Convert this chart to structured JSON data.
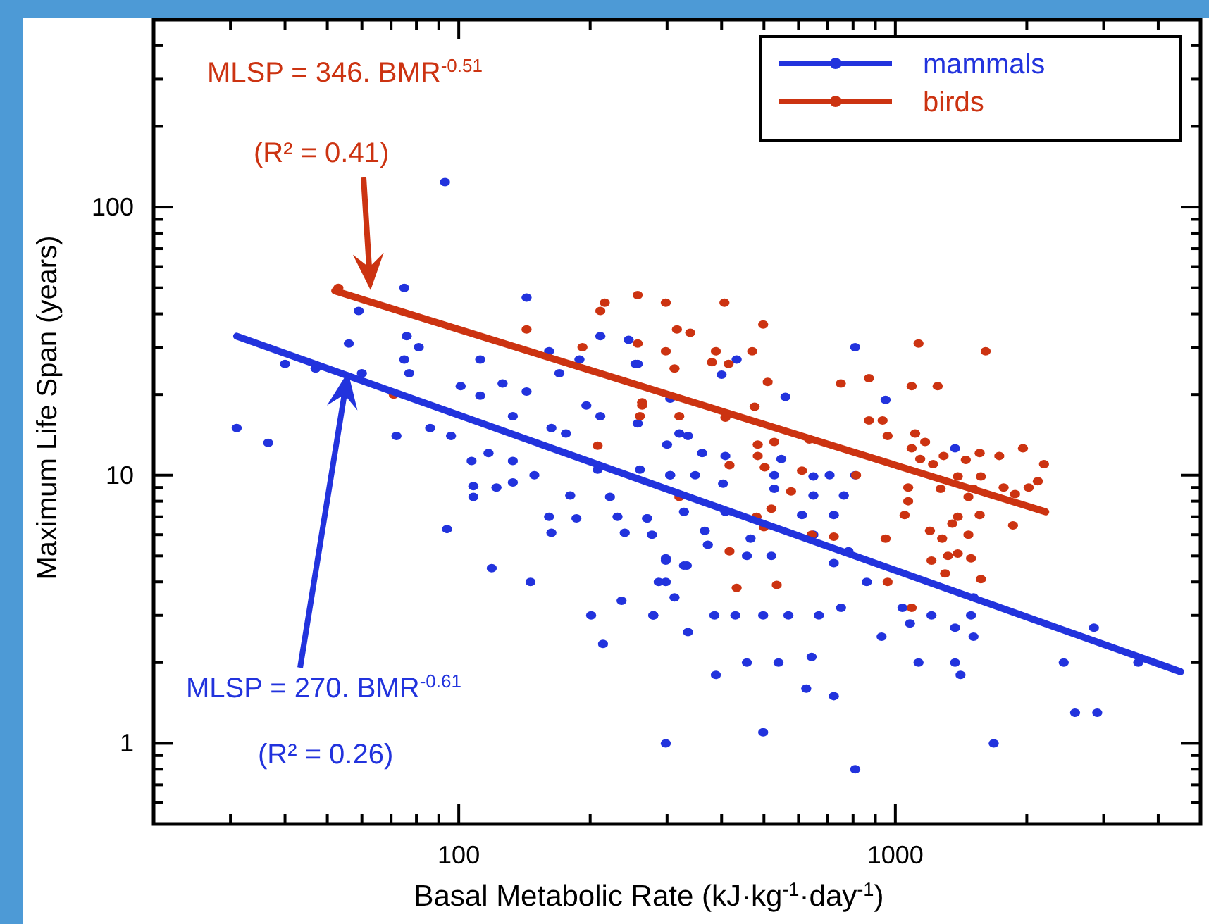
{
  "chart_data": {
    "type": "scatter",
    "xlabel": "Basal Metabolic Rate (kJ·kg$^{-1}$·day$^{-1}$)",
    "ylabel": "Maximum Life Span (years)",
    "log": "xy",
    "grid": false,
    "legend": "top right",
    "marker": "circle",
    "xlim": [
      20,
      5000
    ],
    "ylim": [
      0.5,
      500
    ],
    "xticks": [
      {
        "value": 20,
        "label": null
      },
      {
        "value": 30,
        "label": null
      },
      {
        "value": 40,
        "label": null
      },
      {
        "value": 50,
        "label": null
      },
      {
        "value": 60,
        "label": null
      },
      {
        "value": 70,
        "label": null
      },
      {
        "value": 80,
        "label": null
      },
      {
        "value": 90,
        "label": null
      },
      100,
      {
        "value": 200,
        "label": null
      },
      {
        "value": 300,
        "label": null
      },
      {
        "value": 400,
        "label": null
      },
      {
        "value": 500,
        "label": null
      },
      {
        "value": 600,
        "label": null
      },
      {
        "value": 700,
        "label": null
      },
      {
        "value": 800,
        "label": null
      },
      {
        "value": 900,
        "label": null
      },
      1000,
      {
        "value": 2000,
        "label": null
      },
      {
        "value": 3000,
        "label": null
      },
      {
        "value": 4000,
        "label": null
      },
      {
        "value": 5000,
        "label": null
      }
    ],
    "yticks": [
      {
        "value": 0.5,
        "label": null
      },
      {
        "value": 0.6,
        "label": null
      },
      {
        "value": 0.7,
        "label": null
      },
      {
        "value": 0.8,
        "label": null
      },
      {
        "value": 0.9,
        "label": null
      },
      1,
      {
        "value": 2,
        "label": null
      },
      {
        "value": 3,
        "label": null
      },
      {
        "value": 4,
        "label": null
      },
      {
        "value": 5,
        "label": null
      },
      {
        "value": 6,
        "label": null
      },
      {
        "value": 7,
        "label": null
      },
      {
        "value": 8,
        "label": null
      },
      {
        "value": 9,
        "label": null
      },
      10,
      {
        "value": 20,
        "label": null
      },
      {
        "value": 30,
        "label": null
      },
      {
        "value": 40,
        "label": null
      },
      {
        "value": 50,
        "label": null
      },
      {
        "value": 60,
        "label": null
      },
      {
        "value": 70,
        "label": null
      },
      {
        "value": 80,
        "label": null
      },
      {
        "value": 90,
        "label": null
      },
      100,
      {
        "value": 200,
        "label": null
      },
      {
        "value": 300,
        "label": null
      },
      {
        "value": 400,
        "label": null
      },
      {
        "value": 500,
        "label": null
      }
    ],
    "annotations": [
      "MLSP = 346. BMR$^{-0.51}$",
      "(R² = 0.41)",
      "MLSP = 270. BMR$^{-0.61}$",
      "(R² = 0.26)"
    ],
    "series": [
      {
        "name": "mammals",
        "color": "#2233dd",
        "x": [
          93,
          31,
          36.6,
          40,
          47,
          56,
          59,
          60,
          75,
          72,
          76,
          75,
          81,
          77,
          86,
          94,
          96,
          101,
          107,
          108,
          108,
          112,
          112,
          117,
          119,
          122,
          126,
          133,
          133,
          133,
          143,
          143,
          146,
          149,
          161,
          161,
          163,
          163,
          170,
          176,
          180,
          186,
          189,
          196,
          201,
          211,
          211,
          208,
          214,
          222,
          231,
          236,
          240,
          245,
          254,
          257,
          260,
          270,
          279,
          298,
          298,
          298,
          305,
          328,
          333,
          335,
          320,
          809,
          950,
          1370,
          560,
          433,
          400,
          305,
          257,
          335,
          361,
          408,
          300,
          305,
          348,
          403,
          528,
          649,
          707,
          809,
          548,
          649,
          762,
          528,
          270,
          277,
          366,
          372,
          408,
          466,
          611,
          723,
          649,
          457,
          520,
          781,
          723,
          298,
          328,
          287,
          312,
          385,
          430,
          498,
          569,
          668,
          751,
          860,
          1038,
          1210,
          1490,
          1510,
          1080,
          1370,
          1510,
          930,
          279,
          457,
          540,
          643,
          1130,
          1370,
          1410,
          388,
          625,
          723,
          498,
          809,
          1680,
          2430,
          2850,
          2580,
          2900,
          3600
        ],
        "values": [
          124,
          15,
          13.2,
          26,
          25,
          31,
          41,
          24,
          50,
          14,
          33,
          27,
          30,
          24,
          15,
          6.3,
          14,
          21.5,
          11.3,
          9.1,
          8.3,
          27,
          19.8,
          12.1,
          4.5,
          9,
          22,
          16.6,
          11.3,
          9.4,
          46,
          20.5,
          4,
          10,
          7,
          29,
          6.1,
          15,
          24,
          14.3,
          8.4,
          6.9,
          27,
          18.2,
          3,
          33,
          16.6,
          10.5,
          2.35,
          8.3,
          7,
          3.4,
          6.1,
          32,
          26,
          15.6,
          10.5,
          6.9,
          3,
          4.9,
          4,
          1,
          10,
          7.3,
          4.6,
          2.6,
          14.3,
          30,
          19.1,
          12.6,
          19.6,
          27,
          23.7,
          19.3,
          26,
          14,
          12.1,
          11.8,
          13,
          10,
          10,
          9.3,
          10,
          9.9,
          10,
          10,
          11.5,
          8.4,
          8.4,
          8.9,
          6.9,
          6,
          6.2,
          5.5,
          7.3,
          5.8,
          7.1,
          7.1,
          6,
          5,
          5,
          5.2,
          4.7,
          4.8,
          4.6,
          4,
          3.5,
          3,
          3,
          3,
          3,
          3,
          3.2,
          4,
          3.2,
          3,
          3,
          3.5,
          2.8,
          2.7,
          2.5,
          2.5,
          3,
          2,
          2,
          2.1,
          2,
          2,
          1.8,
          1.8,
          1.6,
          1.5,
          1.1,
          0.8,
          1,
          2,
          2.7,
          1.3,
          1.3,
          2
        ]
      },
      {
        "name": "birds",
        "color": "#cc3311",
        "x": [
          53,
          143,
          71,
          211,
          216,
          257,
          298,
          192,
          257,
          298,
          312,
          316,
          263,
          260,
          208,
          320,
          320,
          406,
          339,
          498,
          388,
          470,
          380,
          415,
          510,
          750,
          870,
          1130,
          1610,
          1090,
          1250,
          263,
          408,
          476,
          870,
          935,
          960,
          1110,
          1170,
          1090,
          484,
          528,
          635,
          484,
          502,
          417,
          611,
          813,
          1140,
          1220,
          1290,
          1450,
          1560,
          1730,
          1960,
          2190,
          1390,
          1570,
          2120,
          2020,
          1770,
          1880,
          1510,
          1470,
          1560,
          1270,
          1070,
          1070,
          1050,
          1390,
          1350,
          1860,
          1470,
          1200,
          1280,
          950,
          723,
          643,
          577,
          520,
          481,
          500,
          417,
          1320,
          1390,
          1490,
          1210,
          1300,
          1570,
          433,
          535,
          960,
          1090
        ],
        "values": [
          50,
          35,
          20,
          41,
          44,
          47,
          44,
          30,
          31,
          29,
          25,
          35,
          18.7,
          16.6,
          12.9,
          8.3,
          16.6,
          44,
          34,
          36.5,
          29,
          29,
          26.4,
          26,
          22.3,
          22,
          23,
          31,
          29,
          21.5,
          21.5,
          18.2,
          16.4,
          18,
          16,
          16,
          14,
          14.3,
          13.3,
          12.6,
          13,
          13.3,
          13.6,
          11.8,
          10.7,
          10.9,
          10.4,
          10,
          11.5,
          11,
          11.8,
          11.4,
          12.1,
          11.8,
          12.6,
          11,
          9.9,
          9.9,
          9.5,
          9,
          9,
          8.5,
          8.9,
          8.3,
          7.1,
          8.9,
          9,
          8,
          7.1,
          7,
          6.6,
          6.5,
          6,
          6.2,
          5.8,
          5.8,
          5.9,
          6,
          8.7,
          7.5,
          7,
          6.4,
          5.2,
          5,
          5.1,
          4.9,
          4.8,
          4.3,
          4.1,
          3.8,
          3.9,
          4,
          3.2
        ]
      },
      {
        "type": "line",
        "color": "#2233dd",
        "marker": "none",
        "x": [
          31,
          4500
        ],
        "values": [
          33,
          1.85
        ]
      },
      {
        "type": "line",
        "color": "#cc3311",
        "marker": "none",
        "x": [
          52,
          2210
        ],
        "values": [
          48.7,
          7.3
        ]
      }
    ]
  }
}
